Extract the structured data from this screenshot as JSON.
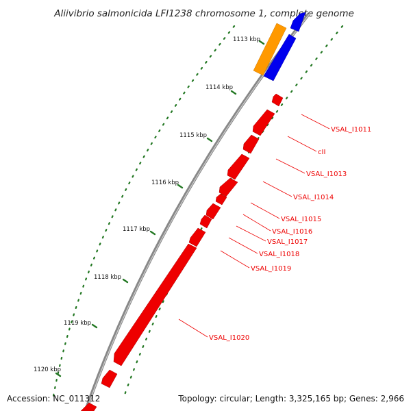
{
  "title": "Aliivibrio salmonicida LFI1238 chromosome 1, complete genome",
  "footer": {
    "accession": "Accession: NC_011312",
    "summary": "Topology: circular; Length: 3,325,165 bp; Genes: 2,966"
  },
  "scale_labels": [
    "1113 kbp",
    "1114 kbp",
    "1115 kbp",
    "1116 kbp",
    "1117 kbp",
    "1118 kbp",
    "1119 kbp",
    "1120 kbp"
  ],
  "gene_labels": [
    "VSAL_I1011",
    "cII",
    "VSAL_I1013",
    "VSAL_I1014",
    "VSAL_I1015",
    "VSAL_I1016",
    "VSAL_I1017",
    "VSAL_I1018",
    "VSAL_I1019",
    "VSAL_I1020"
  ],
  "colors": {
    "forward_gene": "#0000ee",
    "other_gene": "#ff9900",
    "reverse_gene": "#ee0000",
    "label_line": "#ee0000",
    "backbone": "#888888",
    "tick": "#227722"
  }
}
